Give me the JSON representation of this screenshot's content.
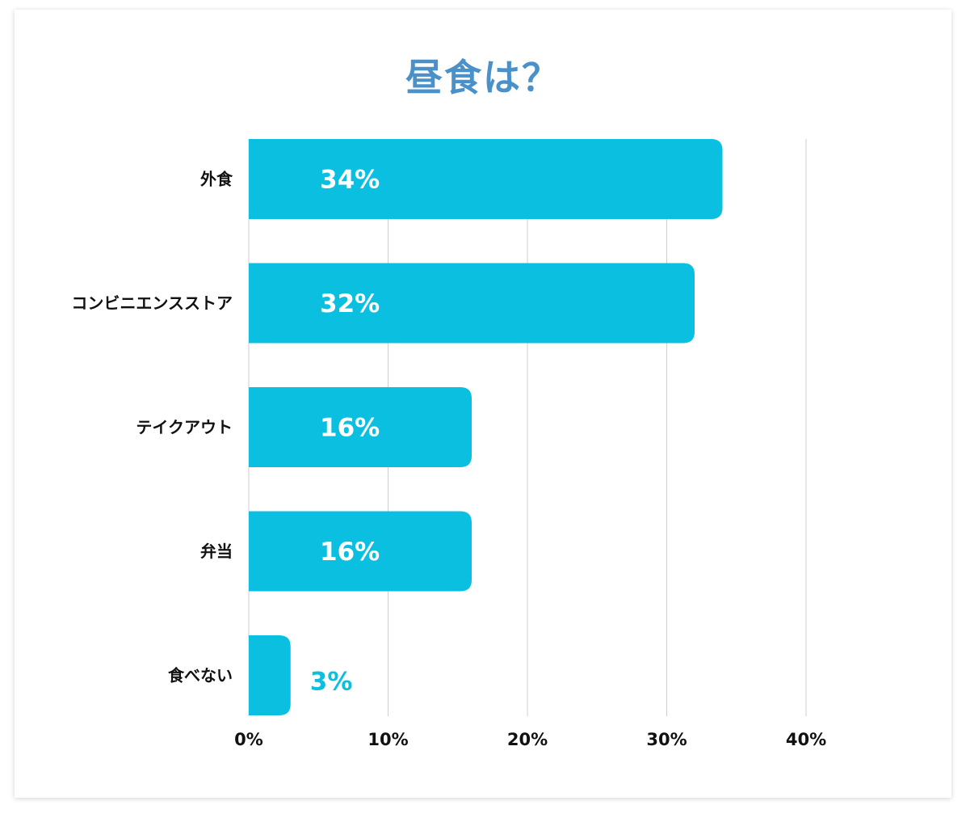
{
  "chart_data": {
    "type": "bar",
    "orientation": "horizontal",
    "title": "昼食は？",
    "categories": [
      "外食",
      "コンビニエンスストア",
      "テイクアウト",
      "弁当",
      "食べない"
    ],
    "values": [
      34,
      32,
      16,
      16,
      3
    ],
    "value_labels": [
      "34%",
      "32%",
      "16%",
      "16%",
      "3%"
    ],
    "xlim": [
      0,
      40
    ],
    "xticks": [
      0,
      10,
      20,
      30,
      40
    ],
    "xtick_labels": [
      "0%",
      "10%",
      "20%",
      "30%",
      "40%"
    ],
    "grid": true,
    "colors": {
      "bar": "#0bbfe0",
      "title": "#4a90c9",
      "label_inside": "#ffffff",
      "label_outside": "#0bbfe0"
    }
  }
}
